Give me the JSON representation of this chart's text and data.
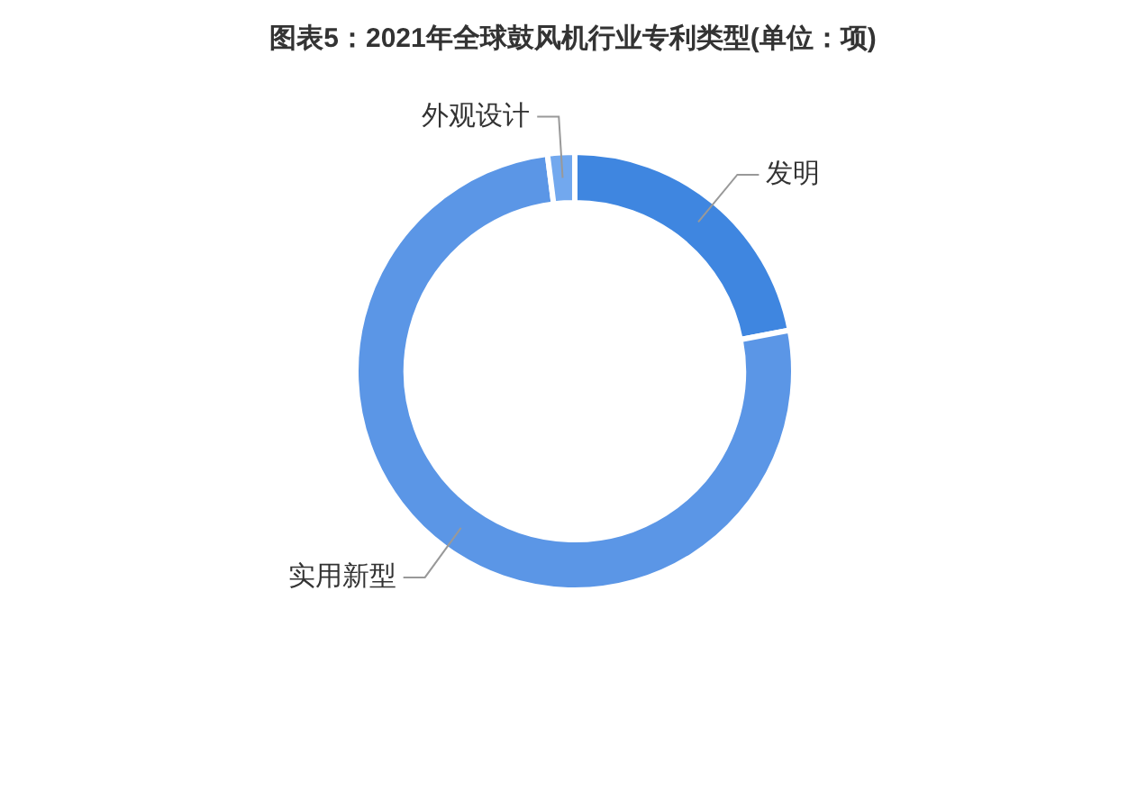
{
  "chart_data": {
    "type": "donut",
    "title": "图表5：2021年全球鼓风机行业专利类型(单位：项)",
    "categories": [
      "发明",
      "实用新型",
      "外观设计"
    ],
    "values": [
      22,
      76,
      2
    ],
    "colors": [
      "#3f86e0",
      "#5b96e6",
      "#72a8ee"
    ]
  }
}
